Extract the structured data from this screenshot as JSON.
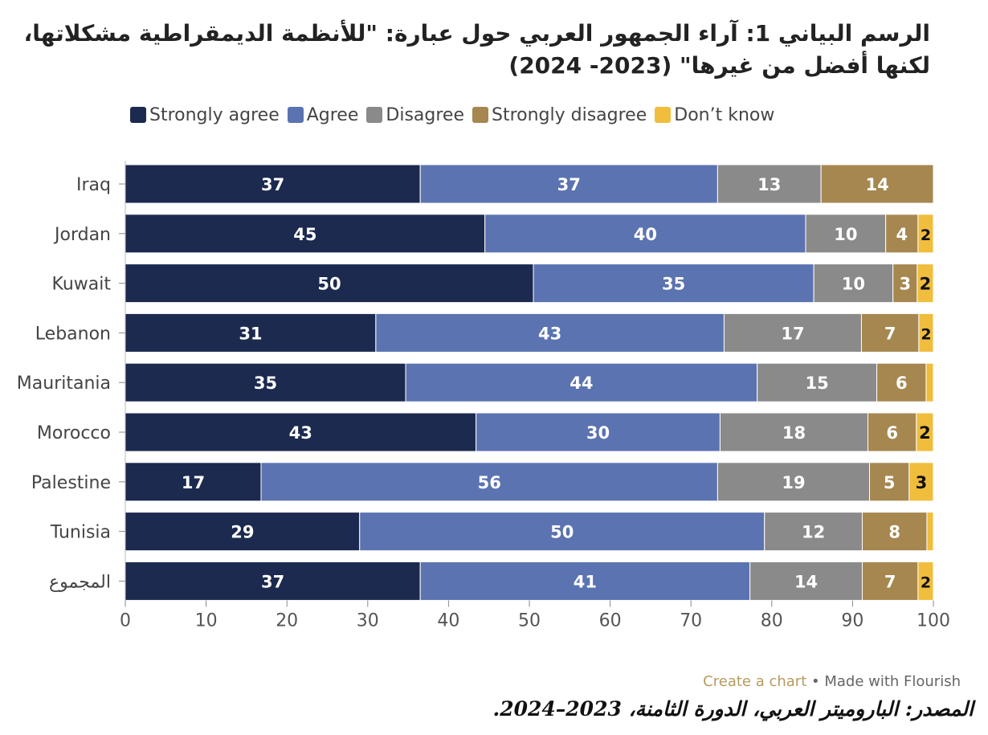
{
  "title": "الرسم البياني 1: آراء الجمهور العربي حول عبارة: \"للأنظمة الديمقراطية مشكلاتها، لكنها أفضل من غيرها\" (2023- 2024)",
  "source": "المصدر: الباروميتر العربي، الدورة الثامنة، 2023–2024.",
  "footer": {
    "create_link": "Create a chart",
    "separator": "•",
    "made_with": "Made with Flourish"
  },
  "chart_data": {
    "type": "bar",
    "orientation": "horizontal",
    "stacked": true,
    "categories": [
      "Iraq",
      "Jordan",
      "Kuwait",
      "Lebanon",
      "Mauritania",
      "Morocco",
      "Palestine",
      "Tunisia",
      "المجموع"
    ],
    "series": [
      {
        "name": "Strongly agree",
        "color": "#1c2a4f",
        "values": [
          36.5,
          44.5,
          50.5,
          31,
          34.7,
          43.4,
          16.8,
          29,
          36.5
        ]
      },
      {
        "name": "Agree",
        "color": "#5b73b0",
        "values": [
          36.8,
          39.7,
          34.7,
          43.1,
          43.5,
          30.2,
          56.5,
          50.1,
          40.8
        ]
      },
      {
        "name": "Disagree",
        "color": "#8a8a8a",
        "values": [
          12.8,
          9.9,
          9.8,
          17,
          14.8,
          18.3,
          18.8,
          12.1,
          13.9
        ]
      },
      {
        "name": "Strongly disagree",
        "color": "#a6874f",
        "values": [
          13.9,
          4.0,
          3.0,
          7.1,
          6.1,
          6.0,
          4.9,
          8.0,
          6.9
        ]
      },
      {
        "name": "Don’t know",
        "color": "#f1bd3c",
        "values": [
          0,
          1.9,
          2.0,
          1.8,
          0.9,
          2.1,
          3.0,
          0.8,
          1.9
        ]
      }
    ],
    "labels": [
      [
        "37",
        "37",
        "13",
        "14",
        ""
      ],
      [
        "45",
        "40",
        "10",
        "4",
        "2"
      ],
      [
        "50",
        "35",
        "10",
        "3",
        "2"
      ],
      [
        "31",
        "43",
        "17",
        "7",
        "2"
      ],
      [
        "35",
        "44",
        "15",
        "6",
        ""
      ],
      [
        "43",
        "30",
        "18",
        "6",
        "2"
      ],
      [
        "17",
        "56",
        "19",
        "5",
        "3"
      ],
      [
        "29",
        "50",
        "12",
        "8",
        ""
      ],
      [
        "37",
        "41",
        "14",
        "7",
        "2"
      ]
    ],
    "xlim": [
      0,
      100
    ],
    "xticks": [
      0,
      10,
      20,
      30,
      40,
      50,
      60,
      70,
      80,
      90,
      100
    ],
    "xlabel": "",
    "ylabel": "",
    "legend_position": "top"
  }
}
